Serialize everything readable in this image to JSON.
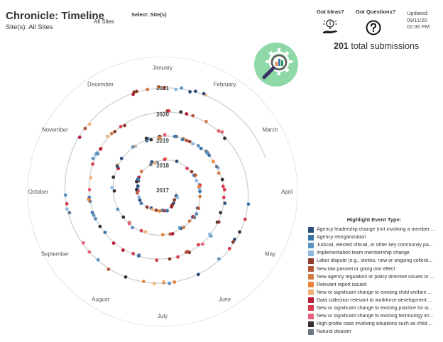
{
  "header": {
    "title": "Chronicle: Timeline",
    "site_line": "Site(s): All Sites",
    "select_label": "Select: Site(s)",
    "select_value": "All Sites"
  },
  "help": {
    "ideas_label": "Got Ideas?",
    "questions_label": "Got Questions?"
  },
  "updated": {
    "label": "Updated:",
    "date": "09/11/20",
    "time": "02:36 PM"
  },
  "summary": {
    "count": "201",
    "label": "total submissions"
  },
  "months": [
    "January",
    "February",
    "March",
    "April",
    "May",
    "June",
    "July",
    "August",
    "September",
    "October",
    "November",
    "December"
  ],
  "years": [
    "2017",
    "2018",
    "2019",
    "2020",
    "2021"
  ],
  "legend": {
    "title": "Highlight Event Type:",
    "items": [
      {
        "label": "Agency leadership change (not involving a member ...",
        "color": "#2c4f7c"
      },
      {
        "label": "Agency reorganization",
        "color": "#3b74a8"
      },
      {
        "label": "Judicial, elected official, or other key community pa...",
        "color": "#5a93c0"
      },
      {
        "label": "Implementation team membership change",
        "color": "#8fb9df"
      },
      {
        "label": "Labor dispute (e.g., strikes, new or ongoing collecti...",
        "color": "#8e3b2c"
      },
      {
        "label": "New law passed or going into effect",
        "color": "#b3583a"
      },
      {
        "label": "New agency regulation or policy directive issued or ...",
        "color": "#cf7c45"
      },
      {
        "label": "Relevant report issued",
        "color": "#e8843a"
      },
      {
        "label": "New or significant change to existing child welfare ...",
        "color": "#f0b27a"
      },
      {
        "label": "Data collection relevant to workforce development ...",
        "color": "#b51f3a"
      },
      {
        "label": "New or significant change to existing practice for w...",
        "color": "#d63a4c"
      },
      {
        "label": "New or significant change to existing technology im...",
        "color": "#e5627a"
      },
      {
        "label": "High-profile case involving situations such as child ...",
        "color": "#3a2f2f"
      },
      {
        "label": "Natural disaster",
        "color": "#6b7585"
      }
    ]
  }
}
